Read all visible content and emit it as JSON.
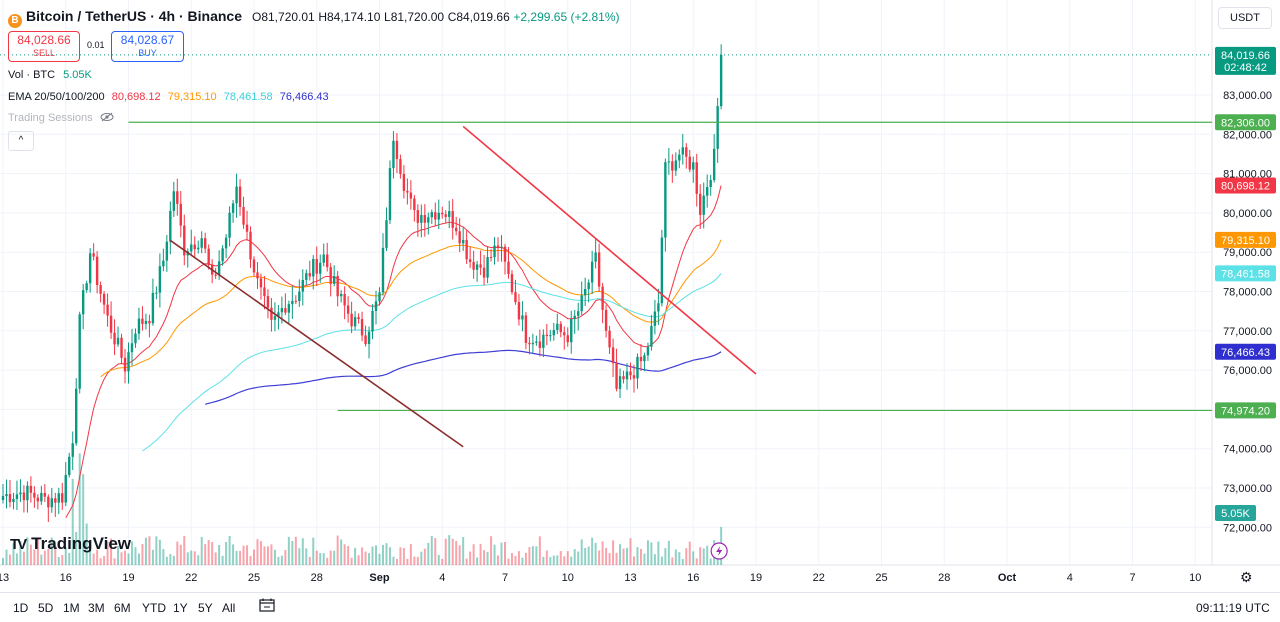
{
  "header": {
    "coin_icon": "B",
    "symbol": "Bitcoin / TetherUS · 4h · Binance",
    "open": "O81,720.01",
    "high": "H84,174.10",
    "low": "L81,720.00",
    "close": "C84,019.66",
    "change": "+2,299.65 (+2.81%)"
  },
  "trade": {
    "sell_price": "84,028.66",
    "sell_label": "SELL",
    "spread": "0.01",
    "buy_price": "84,028.67",
    "buy_label": "BUY"
  },
  "indicators": {
    "vol_label": "Vol · BTC",
    "vol_value": "5.05K",
    "ema_label": "EMA 20/50/100/200",
    "ema20": "80,698.12",
    "ema50": "79,315.10",
    "ema100": "78,461.58",
    "ema200": "76,466.43",
    "sessions_label": "Trading Sessions",
    "collapse_icon": "^"
  },
  "currency_button": "USDT",
  "logo": {
    "mark": "TV",
    "text": "TradingView"
  },
  "bottom": {
    "ranges": [
      "1D",
      "5D",
      "1M",
      "3M",
      "6M",
      "YTD",
      "1Y",
      "5Y",
      "All"
    ],
    "time": "09:11:19 UTC",
    "calendar_icon": "calendar-range-icon",
    "settings_icon": "gear-icon"
  },
  "chart_data": {
    "type": "candlestick",
    "colors": {
      "up": "#089981",
      "down": "#f23645",
      "ema20": "#f23645",
      "ema50": "#ff9800",
      "ema100": "#5ce1e6",
      "ema200": "#3f3fd6"
    },
    "y_axis": {
      "ylim": [
        71600,
        85200
      ],
      "ticks": [
        "72,000.00",
        "73,000.00",
        "74,000.00",
        "75,000.00",
        "76,000.00",
        "77,000.00",
        "78,000.00",
        "79,000.00",
        "80,000.00",
        "81,000.00",
        "82,000.00",
        "83,000.00"
      ]
    },
    "x_axis": {
      "ticks": [
        "13",
        "16",
        "19",
        "22",
        "25",
        "28",
        "Sep",
        "4",
        "7",
        "10",
        "13",
        "16",
        "19",
        "22",
        "25",
        "28",
        "Oct",
        "4",
        "7",
        "10"
      ],
      "bars_per_day": 6,
      "first_tick_bar_offset": 0
    },
    "price_labels": [
      {
        "value": 84019.66,
        "text": "84,019.66",
        "sub": "02:48:42",
        "color": "#089981"
      },
      {
        "value": 82306.0,
        "text": "82,306.00",
        "color": "#4caf50"
      },
      {
        "value": 80698.12,
        "text": "80,698.12",
        "color": "#f23645"
      },
      {
        "value": 79315.1,
        "text": "79,315.10",
        "color": "#ff9800"
      },
      {
        "value": 78461.58,
        "text": "78,461.58",
        "color": "#5ce1e6"
      },
      {
        "value": 76466.43,
        "text": "76,466.43",
        "color": "#2f2fd0"
      },
      {
        "value": 74974.2,
        "text": "74,974.20",
        "color": "#4caf50"
      }
    ],
    "volume_label": {
      "text": "5.05K",
      "color": "#26a69a"
    },
    "horizontal_lines": [
      {
        "value": 82306.0,
        "from_date": "Aug 19",
        "color": "#4caf50"
      },
      {
        "value": 74974.2,
        "from_date": "Aug 29",
        "color": "#4caf50"
      }
    ],
    "trendlines": [
      {
        "from": [
          "Aug 21",
          79300
        ],
        "to": [
          "Sep 4",
          74050
        ],
        "color": "#8b2d2d"
      },
      {
        "from": [
          "Sep 4",
          82200
        ],
        "to": [
          "Sep 18",
          75900
        ],
        "color": "#f23645"
      },
      {
        "from": [
          "Sep 4",
          82200
        ],
        "to": [
          "Sep 4",
          82200
        ],
        "color": "#f23645"
      }
    ],
    "price_path": [
      [
        0,
        72800
      ],
      [
        6,
        72900
      ],
      [
        12,
        72700
      ],
      [
        17,
        72800
      ],
      [
        20,
        74300
      ],
      [
        22,
        77200
      ],
      [
        25,
        79000
      ],
      [
        30,
        77300
      ],
      [
        35,
        76100
      ],
      [
        38,
        77100
      ],
      [
        42,
        77400
      ],
      [
        46,
        78800
      ],
      [
        49,
        80600
      ],
      [
        52,
        79100
      ],
      [
        57,
        79400
      ],
      [
        60,
        78200
      ],
      [
        64,
        79400
      ],
      [
        67,
        80700
      ],
      [
        70,
        79400
      ],
      [
        73,
        78200
      ],
      [
        77,
        77100
      ],
      [
        81,
        77700
      ],
      [
        84,
        77900
      ],
      [
        88,
        78500
      ],
      [
        92,
        78900
      ],
      [
        96,
        77900
      ],
      [
        100,
        77300
      ],
      [
        104,
        76900
      ],
      [
        108,
        77900
      ],
      [
        112,
        82000
      ],
      [
        115,
        80800
      ],
      [
        118,
        79900
      ],
      [
        122,
        80000
      ],
      [
        126,
        80100
      ],
      [
        130,
        79700
      ],
      [
        134,
        78800
      ],
      [
        138,
        78600
      ],
      [
        142,
        79200
      ],
      [
        146,
        78100
      ],
      [
        150,
        76900
      ],
      [
        154,
        76800
      ],
      [
        158,
        77000
      ],
      [
        162,
        76900
      ],
      [
        166,
        77700
      ],
      [
        170,
        78800
      ],
      [
        173,
        76900
      ],
      [
        176,
        75500
      ],
      [
        180,
        75900
      ],
      [
        184,
        76300
      ],
      [
        188,
        77700
      ],
      [
        190,
        81100
      ],
      [
        194,
        81500
      ],
      [
        198,
        81200
      ],
      [
        200,
        80100
      ],
      [
        204,
        81400
      ],
      [
        206,
        84019
      ]
    ]
  }
}
